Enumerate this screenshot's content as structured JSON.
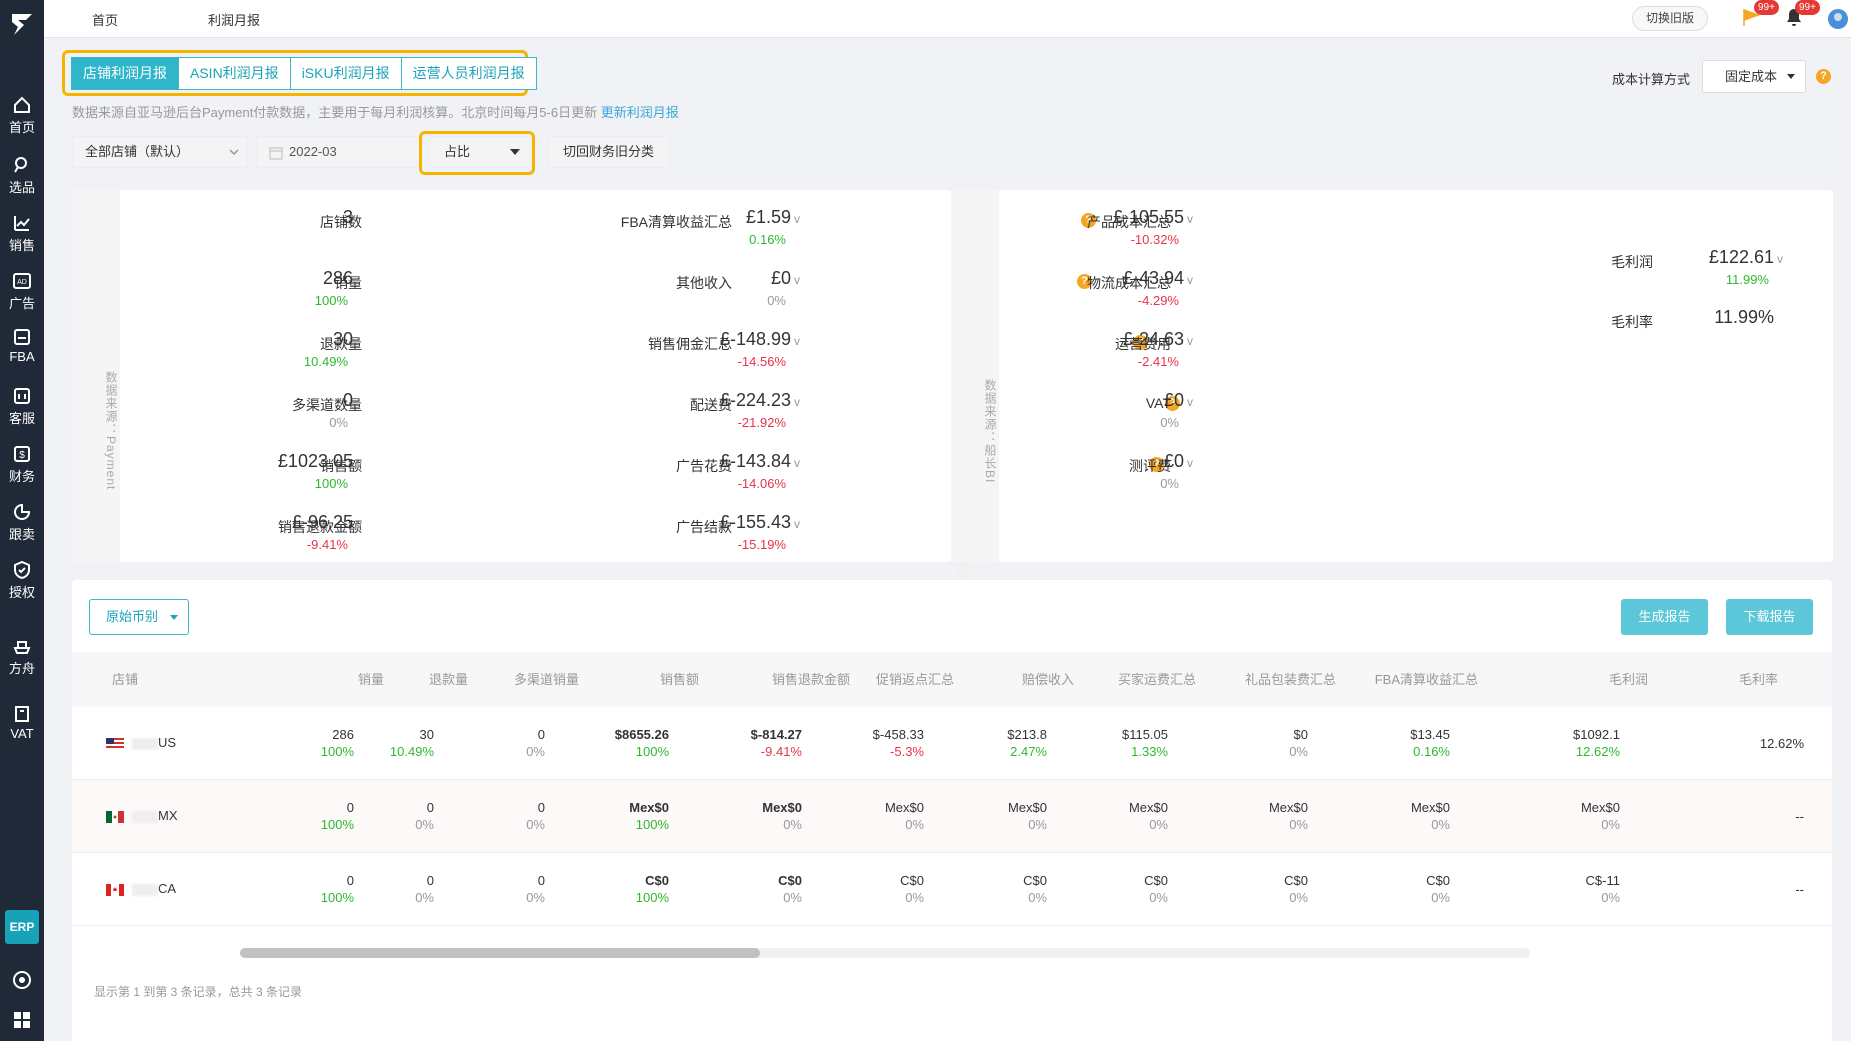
{
  "sidebar": {
    "items": [
      {
        "label": "首页",
        "icon": "home-icon"
      },
      {
        "label": "选品",
        "icon": "search-icon"
      },
      {
        "label": "销售",
        "icon": "chart-line-icon"
      },
      {
        "label": "广告",
        "icon": "ad-icon"
      },
      {
        "label": "FBA",
        "icon": "box-icon"
      },
      {
        "label": "客服",
        "icon": "chat-icon"
      },
      {
        "label": "财务",
        "icon": "dollar-icon"
      },
      {
        "label": "跟卖",
        "icon": "pie-icon"
      },
      {
        "label": "授权",
        "icon": "shield-icon"
      },
      {
        "label": "方舟",
        "icon": "ark-icon"
      },
      {
        "label": "VAT",
        "icon": "building-icon"
      }
    ],
    "erp": "ERP"
  },
  "topbar": {
    "breadcrumb_home": "首页",
    "breadcrumb_current": "利润月报",
    "switch_old": "切换旧版",
    "flag_badge": "99+",
    "bell_badge": "99+"
  },
  "tabs": [
    "店铺利润月报",
    "ASIN利润月报",
    "iSKU利润月报",
    "运营人员利润月报"
  ],
  "cost": {
    "label": "成本计算方式",
    "value": "固定成本"
  },
  "notice": {
    "text": "数据来源自亚马逊后台Payment付款数据，主要用于每月利润核算。北京时间每月5-6日更新",
    "link": "更新利润月报"
  },
  "filters": {
    "store": "全部店铺（默认）",
    "month": "2022-03",
    "mode": "占比",
    "switch": "切回财务旧分类"
  },
  "card1": {
    "side_label": "数据来源：Payment",
    "left": [
      {
        "label": "店铺数",
        "value": "3",
        "pct": "",
        "color": "gray",
        "arrow": ""
      },
      {
        "label": "销量",
        "value": "286",
        "pct": "100%",
        "color": "green",
        "arrow": ""
      },
      {
        "label": "退款量",
        "value": "30",
        "pct": "10.49%",
        "color": "green",
        "arrow": ""
      },
      {
        "label": "多渠道数量",
        "value": "0",
        "pct": "0%",
        "color": "gray",
        "arrow": ""
      },
      {
        "label": "销售额",
        "value": "£1023.05",
        "pct": "100%",
        "color": "green",
        "arrow": "v"
      },
      {
        "label": "销售退款金额",
        "value": "£-96.25",
        "pct": "-9.41%",
        "color": "red",
        "arrow": "v"
      }
    ],
    "right": [
      {
        "label": "FBA清算收益汇总",
        "value": "£1.59",
        "pct": "0.16%",
        "color": "green",
        "arrow": "v"
      },
      {
        "label": "其他收入",
        "value": "£0",
        "pct": "0%",
        "color": "gray",
        "arrow": "v"
      },
      {
        "label": "销售佣金汇总",
        "value": "£-148.99",
        "pct": "-14.56%",
        "color": "red",
        "arrow": "v"
      },
      {
        "label": "配送费",
        "value": "£-224.23",
        "pct": "-21.92%",
        "color": "red",
        "arrow": "v"
      },
      {
        "label": "广告花费",
        "value": "£-143.84",
        "pct": "-14.06%",
        "color": "red",
        "arrow": "v"
      },
      {
        "label": "广告结款",
        "value": "£-155.43",
        "pct": "-15.19%",
        "color": "red",
        "arrow": "v"
      }
    ]
  },
  "card2": {
    "side_label": "数据来源：船长BI",
    "left": [
      {
        "label": "产品成本汇总",
        "value": "£-105.55",
        "pct": "-10.32%",
        "color": "red",
        "arrow": "v"
      },
      {
        "label": "物流成本汇总",
        "value": "£-43.94",
        "pct": "-4.29%",
        "color": "red",
        "arrow": "v"
      },
      {
        "label": "运营费用",
        "value": "£-24.63",
        "pct": "-2.41%",
        "color": "red",
        "arrow": "v"
      },
      {
        "label": "VAT",
        "value": "£0",
        "pct": "0%",
        "color": "gray",
        "arrow": "v"
      },
      {
        "label": "测评费",
        "value": "£0",
        "pct": "0%",
        "color": "gray",
        "arrow": "v"
      }
    ],
    "right": [
      {
        "label": "毛利润",
        "value": "£122.61",
        "pct": "11.99%",
        "color": "green",
        "arrow": "v"
      },
      {
        "label": "毛利率",
        "value": "11.99%",
        "pct": "",
        "color": "gray",
        "arrow": ""
      }
    ]
  },
  "table": {
    "currency": "原始币别",
    "btn_generate": "生成报告",
    "btn_download": "下载报告",
    "headers": [
      "店铺",
      "销量",
      "退款量",
      "多渠道销量",
      "销售额",
      "销售退款金额",
      "促销返点汇总",
      "赔偿收入",
      "买家运费汇总",
      "礼品包装费汇总",
      "FBA清算收益汇总",
      "毛利润",
      "毛利率"
    ],
    "rows": [
      {
        "store": "US",
        "flag": "us",
        "cells": [
          [
            "286",
            "100%",
            "green"
          ],
          [
            "30",
            "10.49%",
            "green"
          ],
          [
            "0",
            "0%",
            "gray"
          ],
          [
            "$8655.26",
            "100%",
            "green"
          ],
          [
            "$-814.27",
            "-9.41%",
            "red"
          ],
          [
            "$-458.33",
            "-5.3%",
            "red"
          ],
          [
            "$213.8",
            "2.47%",
            "green"
          ],
          [
            "$115.05",
            "1.33%",
            "green"
          ],
          [
            "$0",
            "0%",
            "gray"
          ],
          [
            "$13.45",
            "0.16%",
            "green"
          ],
          [
            "$1092.1",
            "12.62%",
            "green"
          ]
        ],
        "margin": "12.62%"
      },
      {
        "store": "MX",
        "flag": "mx",
        "cells": [
          [
            "0",
            "100%",
            "green"
          ],
          [
            "0",
            "0%",
            "gray"
          ],
          [
            "0",
            "0%",
            "gray"
          ],
          [
            "Mex$0",
            "100%",
            "green"
          ],
          [
            "Mex$0",
            "0%",
            "gray"
          ],
          [
            "Mex$0",
            "0%",
            "gray"
          ],
          [
            "Mex$0",
            "0%",
            "gray"
          ],
          [
            "Mex$0",
            "0%",
            "gray"
          ],
          [
            "Mex$0",
            "0%",
            "gray"
          ],
          [
            "Mex$0",
            "0%",
            "gray"
          ],
          [
            "Mex$0",
            "0%",
            "gray"
          ]
        ],
        "margin": "--"
      },
      {
        "store": "CA",
        "flag": "ca",
        "cells": [
          [
            "0",
            "100%",
            "green"
          ],
          [
            "0",
            "0%",
            "gray"
          ],
          [
            "0",
            "0%",
            "gray"
          ],
          [
            "C$0",
            "100%",
            "green"
          ],
          [
            "C$0",
            "0%",
            "gray"
          ],
          [
            "C$0",
            "0%",
            "gray"
          ],
          [
            "C$0",
            "0%",
            "gray"
          ],
          [
            "C$0",
            "0%",
            "gray"
          ],
          [
            "C$0",
            "0%",
            "gray"
          ],
          [
            "C$0",
            "0%",
            "gray"
          ],
          [
            "C$-11",
            "0%",
            "gray"
          ]
        ],
        "margin": "--"
      }
    ],
    "pager": "显示第 1 到第 3 条记录，总共 3 条记录"
  }
}
